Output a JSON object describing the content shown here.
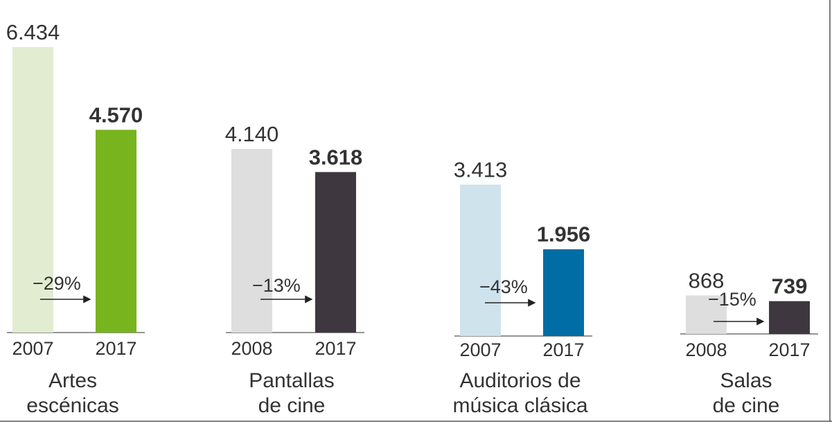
{
  "chart_data": {
    "type": "bar",
    "groups": [
      {
        "name": "Artes escénicas",
        "name_lines": [
          "Artes",
          "escénicas"
        ],
        "change": "−29%",
        "bars": [
          {
            "year": "2007",
            "value": 6434,
            "label": "6.434",
            "color": "#e2ecd0"
          },
          {
            "year": "2017",
            "value": 4570,
            "label": "4.570",
            "color": "#78b41e"
          }
        ]
      },
      {
        "name": "Pantallas de cine",
        "name_lines": [
          "Pantallas",
          "de cine"
        ],
        "change": "−13%",
        "bars": [
          {
            "year": "2008",
            "value": 4140,
            "label": "4.140",
            "color": "#dedede"
          },
          {
            "year": "2017",
            "value": 3618,
            "label": "3.618",
            "color": "#3f373f"
          }
        ]
      },
      {
        "name": "Auditorios de música clásica",
        "name_lines": [
          "Auditorios de",
          "música clásica"
        ],
        "change": "−43%",
        "bars": [
          {
            "year": "2007",
            "value": 3413,
            "label": "3.413",
            "color": "#cfe3ec"
          },
          {
            "year": "2017",
            "value": 1956,
            "label": "1.956",
            "color": "#006ea5"
          }
        ]
      },
      {
        "name": "Salas de cine",
        "name_lines": [
          "Salas",
          "de cine"
        ],
        "change": "−15%",
        "bars": [
          {
            "year": "2008",
            "value": 868,
            "label": "868",
            "color": "#dedede"
          },
          {
            "year": "2017",
            "value": 739,
            "label": "739",
            "color": "#3f373f"
          }
        ]
      }
    ]
  }
}
